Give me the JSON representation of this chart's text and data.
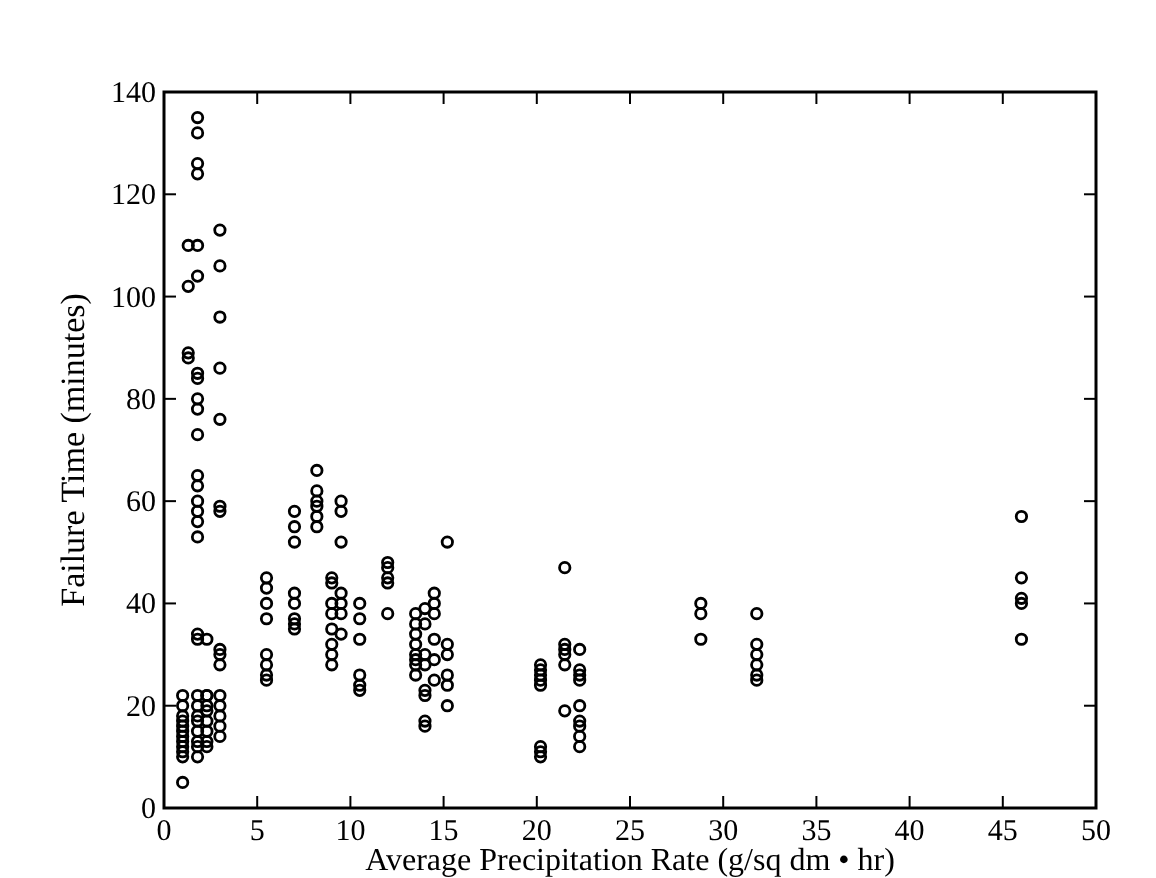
{
  "chart_data": {
    "type": "scatter",
    "xlabel": "Average Precipitation Rate (g/sq dm • hr)",
    "ylabel": "Failure Time (minutes)",
    "xlim": [
      0,
      50
    ],
    "xticks": [
      0,
      5,
      10,
      15,
      20,
      25,
      30,
      35,
      40,
      45,
      50
    ],
    "ylim": [
      0,
      140
    ],
    "yticks": [
      0,
      20,
      40,
      60,
      80,
      100,
      120,
      140
    ],
    "marker": "circle",
    "grid": false,
    "series": [
      {
        "color": "#000000",
        "x": [
          1,
          1,
          1,
          1,
          1,
          1,
          1,
          1,
          1,
          1,
          1,
          1,
          1.3,
          1.3,
          1.3,
          1.3,
          1.8,
          1.8,
          1.8,
          1.8,
          1.8,
          1.8,
          1.8,
          1.8,
          1.8,
          1.8,
          1.8,
          1.8,
          1.8,
          1.8,
          1.8,
          1.8,
          1.8,
          1.8,
          1.8,
          1.8,
          1.8,
          1.8,
          1.8,
          1.8,
          1.8,
          1.8,
          1.8,
          2.3,
          2.3,
          2.3,
          2.3,
          2.3,
          2.3,
          2.3,
          2.3,
          2.3,
          3,
          3,
          3,
          3,
          3,
          3,
          3,
          3,
          3,
          3,
          3,
          3,
          3,
          3,
          3,
          5.5,
          5.5,
          5.5,
          5.5,
          5.5,
          5.5,
          5.5,
          5.5,
          7,
          7,
          7,
          7,
          7,
          7,
          7,
          7,
          8.2,
          8.2,
          8.2,
          8.2,
          8.2,
          8.2,
          9,
          9,
          9,
          9,
          9,
          9,
          9,
          9,
          9.5,
          9.5,
          9.5,
          9.5,
          9.5,
          9.5,
          9.5,
          10.5,
          10.5,
          10.5,
          10.5,
          10.5,
          10.5,
          12,
          12,
          12,
          12,
          12,
          13.5,
          13.5,
          13.5,
          13.5,
          13.5,
          13.5,
          13.5,
          13.5,
          14,
          14,
          14,
          14,
          14,
          14,
          14,
          14,
          14.5,
          14.5,
          14.5,
          14.5,
          14.5,
          14.5,
          15.2,
          15.2,
          15.2,
          15.2,
          15.2,
          15.2,
          20.2,
          20.2,
          20.2,
          20.2,
          20.2,
          20.2,
          20.2,
          20.2,
          21.5,
          21.5,
          21.5,
          21.5,
          21.5,
          21.5,
          22.3,
          22.3,
          22.3,
          22.3,
          22.3,
          22.3,
          22.3,
          22.3,
          22.3,
          28.8,
          28.8,
          28.8,
          31.8,
          31.8,
          31.8,
          31.8,
          31.8,
          31.8,
          46,
          46,
          46,
          46,
          46
        ],
        "values": [
          5,
          10,
          11,
          12,
          13,
          14,
          15,
          16,
          17,
          18,
          20,
          22,
          88,
          89,
          102,
          110,
          135,
          132,
          126,
          124,
          110,
          104,
          78,
          80,
          84,
          85,
          73,
          65,
          60,
          58,
          56,
          53,
          63,
          34,
          33,
          22,
          20,
          18,
          17,
          15,
          13,
          12,
          10,
          20,
          22,
          19,
          17,
          15,
          13,
          12,
          22,
          33,
          113,
          106,
          96,
          86,
          76,
          59,
          58,
          31,
          30,
          28,
          22,
          20,
          18,
          16,
          14,
          45,
          43,
          40,
          37,
          30,
          28,
          26,
          25,
          58,
          55,
          52,
          42,
          40,
          37,
          36,
          35,
          66,
          62,
          60,
          59,
          57,
          55,
          45,
          44,
          40,
          38,
          35,
          32,
          30,
          28,
          60,
          58,
          52,
          42,
          40,
          38,
          34,
          40,
          37,
          33,
          26,
          24,
          23,
          48,
          47,
          45,
          44,
          38,
          38,
          36,
          34,
          32,
          30,
          29,
          28,
          26,
          39,
          36,
          30,
          28,
          23,
          22,
          17,
          16,
          42,
          40,
          38,
          33,
          29,
          25,
          52,
          32,
          30,
          26,
          24,
          20,
          28,
          27,
          26,
          25,
          24,
          12,
          11,
          10,
          47,
          32,
          31,
          30,
          28,
          19,
          31,
          27,
          26,
          25,
          20,
          17,
          16,
          14,
          12,
          40,
          38,
          33,
          38,
          32,
          30,
          28,
          26,
          25,
          57,
          45,
          41,
          40,
          33
        ]
      }
    ]
  }
}
